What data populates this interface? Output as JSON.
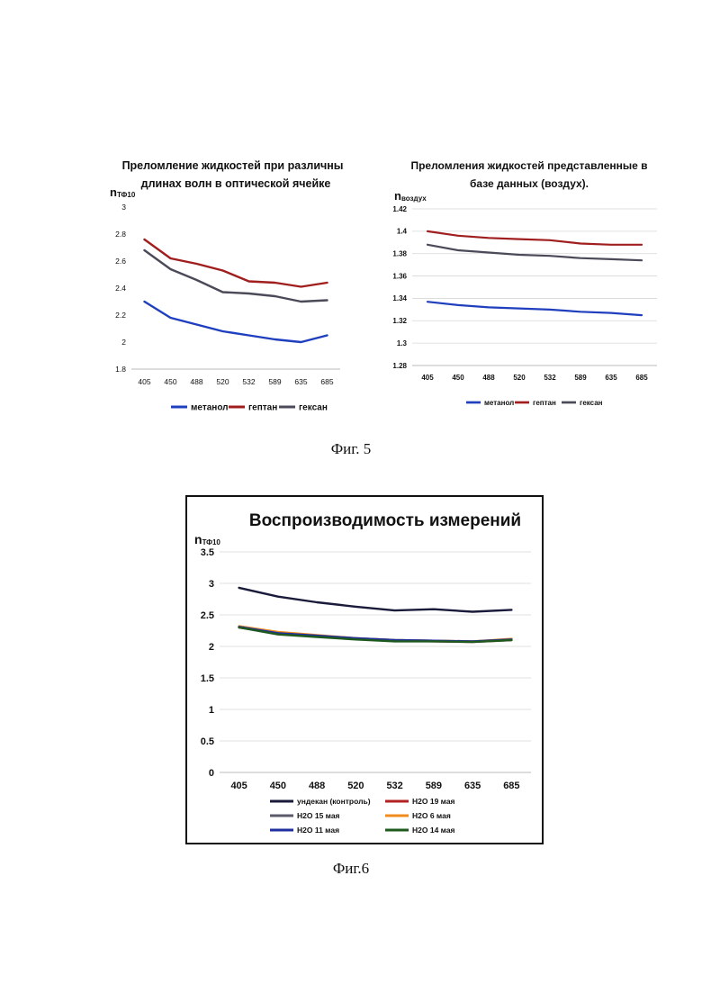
{
  "figure5_caption": "Фиг. 5",
  "figure6_caption": "Фиг.6",
  "chart_data": [
    {
      "type": "line",
      "title_lines": [
        "Преломление жидкостей при различных",
        "длинах волн в оптической ячейке"
      ],
      "ylabel_main": "n",
      "ylabel_sub": "ТФ10",
      "categories": [
        "405",
        "450",
        "488",
        "520",
        "532",
        "589",
        "635",
        "685"
      ],
      "ylim": [
        1.8,
        3
      ],
      "yticks": [
        "1.8",
        "2",
        "2.2",
        "2.4",
        "2.6",
        "2.8",
        "3"
      ],
      "grid": false,
      "legend_position": "bottom",
      "series": [
        {
          "name": "метанол",
          "color": "#1f3fbf",
          "values": [
            2.3,
            2.18,
            2.13,
            2.08,
            2.05,
            2.02,
            2.0,
            2.05
          ]
        },
        {
          "name": "гептан",
          "color": "#a01e1e",
          "values": [
            2.76,
            2.62,
            2.58,
            2.53,
            2.45,
            2.44,
            2.41,
            2.44
          ]
        },
        {
          "name": "гексан",
          "color": "#4a4a58",
          "values": [
            2.68,
            2.54,
            2.46,
            2.37,
            2.36,
            2.34,
            2.3,
            2.31
          ]
        }
      ]
    },
    {
      "type": "line",
      "title_lines": [
        "Преломления жидкостей представленные в",
        "базе данных (воздух)."
      ],
      "ylabel_main": "n",
      "ylabel_sub": "воздух",
      "categories": [
        "405",
        "450",
        "488",
        "520",
        "532",
        "589",
        "635",
        "685"
      ],
      "ylim": [
        1.28,
        1.42
      ],
      "yticks": [
        "1.28",
        "1.3",
        "1.32",
        "1.34",
        "1.36",
        "1.38",
        "1.4",
        "1.42"
      ],
      "grid": true,
      "legend_position": "bottom",
      "series": [
        {
          "name": "метанол",
          "color": "#1f3fbf",
          "values": [
            1.337,
            1.334,
            1.332,
            1.331,
            1.33,
            1.328,
            1.327,
            1.325
          ]
        },
        {
          "name": "гептан",
          "color": "#a01e1e",
          "values": [
            1.4,
            1.396,
            1.394,
            1.393,
            1.392,
            1.389,
            1.388,
            1.388
          ]
        },
        {
          "name": "гексан",
          "color": "#4a4a58",
          "values": [
            1.388,
            1.383,
            1.381,
            1.379,
            1.378,
            1.376,
            1.375,
            1.374
          ]
        }
      ]
    },
    {
      "type": "line",
      "title": "Воспроизводимость измерений",
      "ylabel_main": "n",
      "ylabel_sub": "ТФ10",
      "categories": [
        "405",
        "450",
        "488",
        "520",
        "532",
        "589",
        "635",
        "685"
      ],
      "ylim": [
        0,
        3.5
      ],
      "yticks": [
        "0",
        "0.5",
        "1",
        "1.5",
        "2",
        "2.5",
        "3",
        "3.5"
      ],
      "grid": true,
      "legend_position": "bottom",
      "series": [
        {
          "name": "ундекан (контроль)",
          "color": "#1a1a3a",
          "values": [
            2.93,
            2.79,
            2.7,
            2.63,
            2.57,
            2.59,
            2.55,
            2.58
          ]
        },
        {
          "name": "H2O 19 мая",
          "color": "#b22222",
          "values": [
            2.31,
            2.2,
            2.16,
            2.12,
            2.09,
            2.08,
            2.07,
            2.1
          ]
        },
        {
          "name": "H2O 15 мая",
          "color": "#5a5a6a",
          "values": [
            2.3,
            2.21,
            2.17,
            2.13,
            2.1,
            2.09,
            2.08,
            2.11
          ]
        },
        {
          "name": "H2O 6 мая",
          "color": "#f08c1e",
          "values": [
            2.32,
            2.23,
            2.18,
            2.13,
            2.1,
            2.09,
            2.08,
            2.12
          ]
        },
        {
          "name": "H2O 11 мая",
          "color": "#1f2f9f",
          "values": [
            2.31,
            2.21,
            2.17,
            2.13,
            2.1,
            2.09,
            2.08,
            2.11
          ]
        },
        {
          "name": "H2O 14 мая",
          "color": "#1e5a1e",
          "values": [
            2.3,
            2.19,
            2.15,
            2.11,
            2.08,
            2.08,
            2.07,
            2.1
          ]
        }
      ]
    }
  ]
}
